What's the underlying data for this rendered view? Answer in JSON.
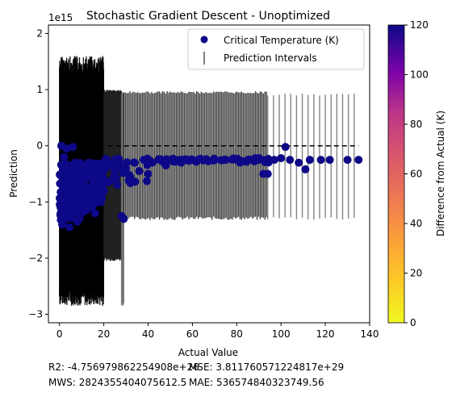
{
  "chart_data": {
    "type": "scatter",
    "title": "Stochastic Gradient Descent - Unoptimized",
    "xlabel": "Actual Value",
    "ylabel": "Prediction",
    "y_offset_label": "1e15",
    "xlim": [
      -5,
      140
    ],
    "ylim": [
      -3.15,
      2.15
    ],
    "xticks": [
      0,
      20,
      40,
      60,
      80,
      100,
      120,
      140
    ],
    "yticks": [
      -3,
      -2,
      -1,
      0,
      1,
      2
    ],
    "grid": false,
    "legend_position": "top-right",
    "legend": [
      {
        "label": "Critical Temperature (K)",
        "marker": "circle",
        "color": "#0d0887"
      },
      {
        "label": "Prediction Intervals",
        "marker": "vertical-bar",
        "color": "#808080"
      }
    ],
    "ideal_line": {
      "style": "dashed",
      "color": "#000000",
      "x": [
        0,
        135
      ],
      "y": [
        0,
        0
      ]
    },
    "colorbar": {
      "label": "Difference from Actual (K)",
      "range": [
        0,
        120
      ],
      "ticks": [
        0,
        20,
        40,
        60,
        80,
        100,
        120
      ],
      "colormap": "plasma_r"
    },
    "series": [
      {
        "name": "Critical Temperature (K)",
        "color": "#0d0887",
        "points": [
          [
            0.5,
            -1.1
          ],
          [
            1,
            -0.85
          ],
          [
            1.5,
            -1.2
          ],
          [
            2,
            -0.6
          ],
          [
            2.5,
            -1.3
          ],
          [
            3,
            -0.9
          ],
          [
            3.5,
            -1.05
          ],
          [
            4,
            -0.5
          ],
          [
            4.5,
            -1.15
          ],
          [
            5,
            -0.75
          ],
          [
            5.5,
            -1.25
          ],
          [
            6,
            -0.95
          ],
          [
            6.5,
            -0.55
          ],
          [
            7,
            -1.1
          ],
          [
            7.5,
            -0.8
          ],
          [
            8,
            -1.35
          ],
          [
            8.5,
            -0.65
          ],
          [
            9,
            -1.0
          ],
          [
            9.5,
            -0.45
          ],
          [
            10,
            -1.2
          ],
          [
            11,
            -0.7
          ],
          [
            12,
            -0.9
          ],
          [
            13,
            -0.5
          ],
          [
            14,
            -1.0
          ],
          [
            15,
            -0.6
          ],
          [
            16,
            -0.85
          ],
          [
            17,
            -0.4
          ],
          [
            18,
            -0.7
          ],
          [
            19,
            -0.55
          ],
          [
            20,
            -0.8
          ],
          [
            21,
            -0.4
          ],
          [
            22,
            -0.65
          ],
          [
            23,
            -0.35
          ],
          [
            24,
            -0.6
          ],
          [
            25,
            -0.45
          ],
          [
            26,
            -0.7
          ],
          [
            27,
            -0.3
          ],
          [
            28,
            -1.25
          ],
          [
            29,
            -1.3
          ],
          [
            30,
            -0.4
          ],
          [
            32,
            -0.55
          ],
          [
            34,
            -0.3
          ],
          [
            36,
            -0.45
          ],
          [
            38,
            -0.25
          ],
          [
            40,
            -0.5
          ],
          [
            42,
            -0.3
          ],
          [
            45,
            -0.25
          ],
          [
            48,
            -0.35
          ],
          [
            50,
            -0.25
          ],
          [
            55,
            -0.3
          ],
          [
            60,
            -0.25
          ],
          [
            65,
            -0.25
          ],
          [
            70,
            -0.25
          ],
          [
            75,
            -0.25
          ],
          [
            80,
            -0.25
          ],
          [
            85,
            -0.25
          ],
          [
            90,
            -0.25
          ],
          [
            92,
            -0.5
          ],
          [
            94,
            -0.5
          ],
          [
            97,
            -0.25
          ],
          [
            100,
            -0.22
          ],
          [
            102,
            -0.02
          ],
          [
            104,
            -0.25
          ],
          [
            108,
            -0.3
          ],
          [
            111,
            -0.42
          ],
          [
            113,
            -0.25
          ],
          [
            118,
            -0.25
          ],
          [
            122,
            -0.25
          ],
          [
            130,
            -0.25
          ],
          [
            135,
            -0.25
          ],
          [
            0.8,
            0.0
          ],
          [
            3.2,
            -0.05
          ],
          [
            6,
            -0.02
          ],
          [
            1.2,
            -1.4
          ],
          [
            4.5,
            -1.45
          ],
          [
            9,
            -1.3
          ],
          [
            12,
            -1.15
          ],
          [
            16,
            -1.2
          ],
          [
            2,
            -0.2
          ],
          [
            7,
            -0.3
          ]
        ]
      }
    ],
    "intervals": [
      {
        "x_range": [
          0,
          20
        ],
        "low": -2.85,
        "high": 1.6
      },
      {
        "x_range": [
          20,
          28
        ],
        "low": -2.05,
        "high": 1.0
      },
      {
        "x_range": [
          28,
          29
        ],
        "low": -2.85,
        "high": 0.95
      },
      {
        "x_range": [
          29,
          94
        ],
        "low": -1.32,
        "high": 0.97
      },
      {
        "x_range": [
          94,
          135
        ],
        "low": -1.32,
        "high": 0.93
      }
    ]
  },
  "metrics": {
    "r2": "R2: -4.756979862254908e+26",
    "mse": "MSE: 3.811760571224817e+29",
    "mws": "MWS: 2824355404075612.5",
    "mae": "MAE: 536574840323749.56"
  }
}
